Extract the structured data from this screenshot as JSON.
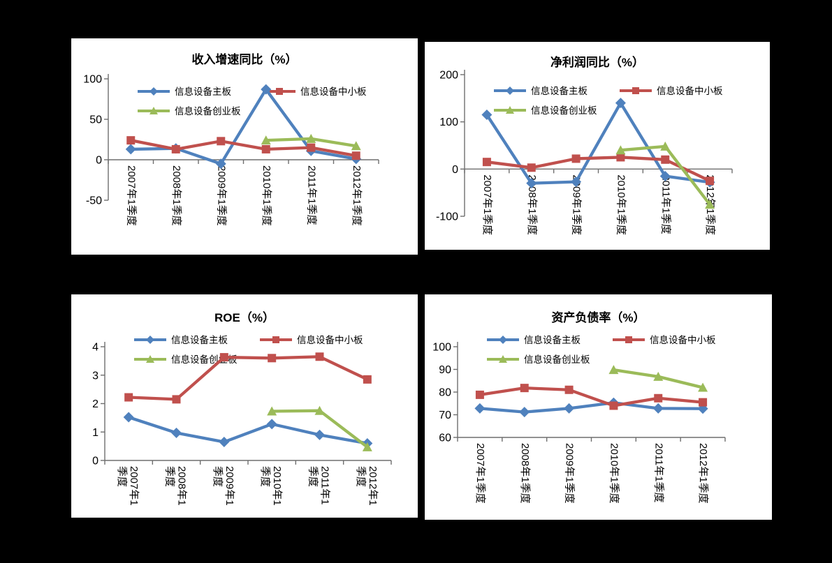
{
  "background_color": "#000000",
  "panel_color": "#FFFFFF",
  "axis_color": "#6E6E6E",
  "text_color": "#000000",
  "chart_data": [
    {
      "id": "revenue-growth-yoy",
      "type": "line",
      "title": "收入增速同比（%）",
      "categories": [
        "2007年1季度",
        "2008年1季度",
        "2009年1季度",
        "2010年1季度",
        "2011年1季度",
        "2012年1季度"
      ],
      "ylim": [
        -50,
        100
      ],
      "yticks": [
        100,
        50,
        0,
        -50
      ],
      "x_axis_at": 0,
      "grid": false,
      "legend_position": "inside-top",
      "series": [
        {
          "name": "信息设备主板",
          "color": "#4F81BD",
          "marker": "diamond",
          "values": [
            13,
            14,
            -5,
            87,
            11,
            1
          ]
        },
        {
          "name": "信息设备中小板",
          "color": "#C0504D",
          "marker": "square",
          "values": [
            24,
            13,
            23,
            13,
            15,
            5
          ]
        },
        {
          "name": "信息设备创业板",
          "color": "#9BBB59",
          "marker": "triangle",
          "values": [
            null,
            null,
            null,
            24,
            26,
            17
          ]
        }
      ]
    },
    {
      "id": "net-profit-yoy",
      "type": "line",
      "title": "净利润同比（%）",
      "categories": [
        "2007年1季度",
        "2008年1季度",
        "2009年1季度",
        "2010年1季度",
        "2011年1季度",
        "2012年1季度"
      ],
      "ylim": [
        -100,
        200
      ],
      "yticks": [
        200,
        100,
        0,
        -100
      ],
      "x_axis_at": 0,
      "grid": false,
      "legend_position": "inside-top",
      "series": [
        {
          "name": "信息设备主板",
          "color": "#4F81BD",
          "marker": "diamond",
          "values": [
            115,
            -30,
            -27,
            140,
            -15,
            -28
          ]
        },
        {
          "name": "信息设备中小板",
          "color": "#C0504D",
          "marker": "square",
          "values": [
            15,
            3,
            22,
            25,
            20,
            -25
          ]
        },
        {
          "name": "信息设备创业板",
          "color": "#9BBB59",
          "marker": "triangle",
          "values": [
            null,
            null,
            null,
            40,
            48,
            -75
          ]
        }
      ]
    },
    {
      "id": "roe",
      "type": "line",
      "title": "ROE（%）",
      "categories": [
        "2007年1季度",
        "2008年1季度",
        "2009年1季度",
        "2010年1季度",
        "2011年1季度",
        "2012年1季度"
      ],
      "ylim": [
        0,
        4
      ],
      "yticks": [
        4,
        3,
        2,
        1,
        0
      ],
      "x_axis_at": 0,
      "grid": false,
      "legend_position": "inside-top",
      "series": [
        {
          "name": "信息设备主板",
          "color": "#4F81BD",
          "marker": "diamond",
          "values": [
            1.52,
            0.97,
            0.65,
            1.28,
            0.9,
            0.6
          ]
        },
        {
          "name": "信息设备中小板",
          "color": "#C0504D",
          "marker": "square",
          "values": [
            2.22,
            2.15,
            3.63,
            3.6,
            3.65,
            2.85
          ]
        },
        {
          "name": "信息设备创业板",
          "color": "#9BBB59",
          "marker": "triangle",
          "values": [
            null,
            null,
            null,
            1.73,
            1.75,
            0.47
          ]
        }
      ]
    },
    {
      "id": "asset-liability-ratio",
      "type": "line",
      "title": "资产负债率（%）",
      "categories": [
        "2007年1季度",
        "2008年1季度",
        "2009年1季度",
        "2010年1季度",
        "2011年1季度",
        "2012年1季度"
      ],
      "ylim": [
        60,
        100
      ],
      "yticks": [
        100,
        90,
        80,
        70,
        60
      ],
      "x_axis_at": 60,
      "grid": false,
      "legend_position": "inside-top",
      "series": [
        {
          "name": "信息设备主板",
          "color": "#4F81BD",
          "marker": "diamond",
          "values": [
            72.8,
            71.2,
            72.8,
            75.3,
            72.8,
            72.7
          ]
        },
        {
          "name": "信息设备中小板",
          "color": "#C0504D",
          "marker": "square",
          "values": [
            78.8,
            81.8,
            81,
            74,
            77.3,
            75.5
          ]
        },
        {
          "name": "信息设备创业板",
          "color": "#9BBB59",
          "marker": "triangle",
          "values": [
            null,
            null,
            null,
            89.8,
            86.8,
            82
          ]
        }
      ]
    }
  ]
}
